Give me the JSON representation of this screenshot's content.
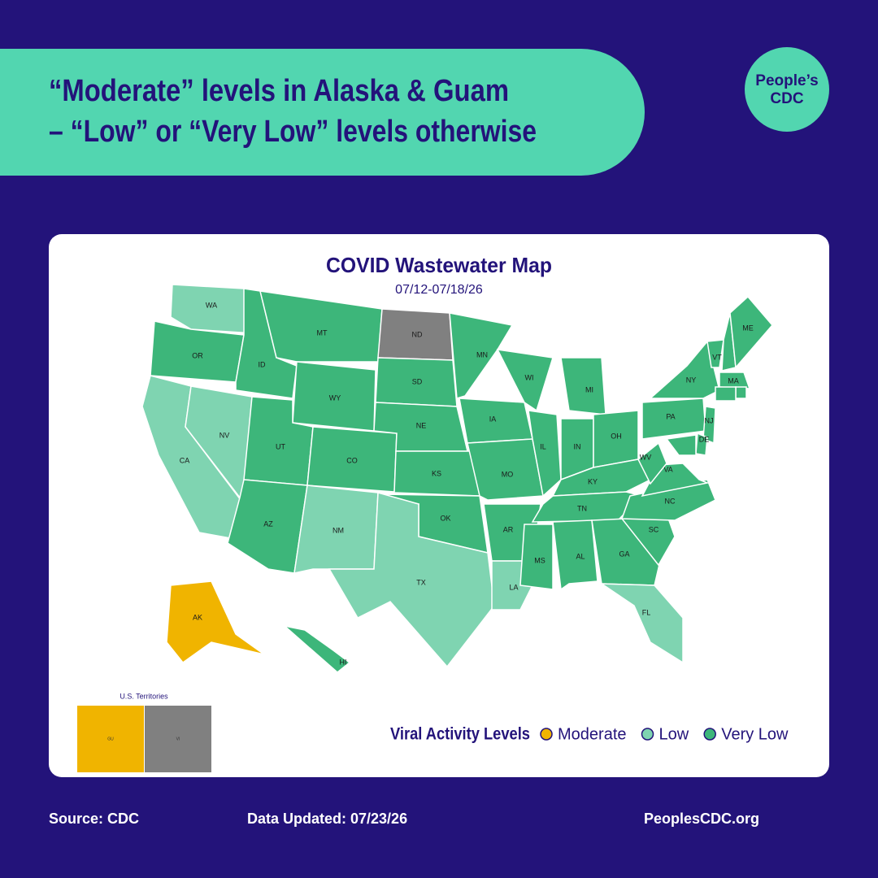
{
  "header": {
    "title_line1": "“Moderate” levels in Alaska & Guam",
    "title_line2": "– “Low” or “Very Low” levels otherwise",
    "logo_line1": "People’s",
    "logo_line2": "CDC"
  },
  "map": {
    "title": "COVID Wastewater Map",
    "date_range": "07/12-07/18/26",
    "no_data_color": "#808080",
    "states": [
      {
        "abbr": "WA",
        "level": "Low"
      },
      {
        "abbr": "OR",
        "level": "Very Low"
      },
      {
        "abbr": "CA",
        "level": "Low"
      },
      {
        "abbr": "NV",
        "level": "Low"
      },
      {
        "abbr": "ID",
        "level": "Very Low"
      },
      {
        "abbr": "MT",
        "level": "Very Low"
      },
      {
        "abbr": "WY",
        "level": "Very Low"
      },
      {
        "abbr": "UT",
        "level": "Very Low"
      },
      {
        "abbr": "CO",
        "level": "Very Low"
      },
      {
        "abbr": "AZ",
        "level": "Very Low"
      },
      {
        "abbr": "NM",
        "level": "Low"
      },
      {
        "abbr": "ND",
        "level": null
      },
      {
        "abbr": "SD",
        "level": "Very Low"
      },
      {
        "abbr": "NE",
        "level": "Very Low"
      },
      {
        "abbr": "KS",
        "level": "Very Low"
      },
      {
        "abbr": "OK",
        "level": "Very Low"
      },
      {
        "abbr": "TX",
        "level": "Low"
      },
      {
        "abbr": "MN",
        "level": "Very Low"
      },
      {
        "abbr": "IA",
        "level": "Very Low"
      },
      {
        "abbr": "MO",
        "level": "Very Low"
      },
      {
        "abbr": "AR",
        "level": "Very Low"
      },
      {
        "abbr": "LA",
        "level": "Low"
      },
      {
        "abbr": "WI",
        "level": "Very Low"
      },
      {
        "abbr": "IL",
        "level": "Very Low"
      },
      {
        "abbr": "MI",
        "level": "Very Low"
      },
      {
        "abbr": "IN",
        "level": "Very Low"
      },
      {
        "abbr": "OH",
        "level": "Very Low"
      },
      {
        "abbr": "KY",
        "level": "Very Low"
      },
      {
        "abbr": "TN",
        "level": "Very Low"
      },
      {
        "abbr": "MS",
        "level": "Very Low"
      },
      {
        "abbr": "AL",
        "level": "Very Low"
      },
      {
        "abbr": "GA",
        "level": "Very Low"
      },
      {
        "abbr": "FL",
        "level": "Low"
      },
      {
        "abbr": "SC",
        "level": "Very Low"
      },
      {
        "abbr": "NC",
        "level": "Very Low"
      },
      {
        "abbr": "VA",
        "level": "Very Low"
      },
      {
        "abbr": "WV",
        "level": "Very Low"
      },
      {
        "abbr": "PA",
        "level": "Very Low"
      },
      {
        "abbr": "NY",
        "level": "Very Low"
      },
      {
        "abbr": "VT",
        "level": "Very Low"
      },
      {
        "abbr": null,
        "level": "Very Low"
      },
      {
        "abbr": "ME",
        "level": "Very Low"
      },
      {
        "abbr": "MA",
        "level": "Very Low"
      },
      {
        "abbr": null,
        "level": "Very Low"
      },
      {
        "abbr": null,
        "level": "Very Low"
      },
      {
        "abbr": "NJ",
        "level": "Very Low"
      },
      {
        "abbr": "DE",
        "level": "Very Low"
      },
      {
        "abbr": null,
        "level": "Very Low"
      },
      {
        "abbr": "AK",
        "level": "Moderate"
      },
      {
        "abbr": "HI",
        "level": "Very Low"
      }
    ],
    "territories_title": "U.S. Territories",
    "territories": [
      {
        "abbr": "GU",
        "level": "Moderate"
      },
      {
        "abbr": "VI",
        "level": null
      }
    ],
    "legend": {
      "title": "Viral Activity Levels",
      "items": [
        {
          "label": "Moderate",
          "color": "#f0b400"
        },
        {
          "label": "Low",
          "color": "#7fd4b1"
        },
        {
          "label": "Very Low",
          "color": "#3db67a"
        }
      ]
    }
  },
  "footer": {
    "source": "Source: CDC",
    "updated": "Data Updated: 07/23/26",
    "site": "PeoplesCDC.org"
  }
}
